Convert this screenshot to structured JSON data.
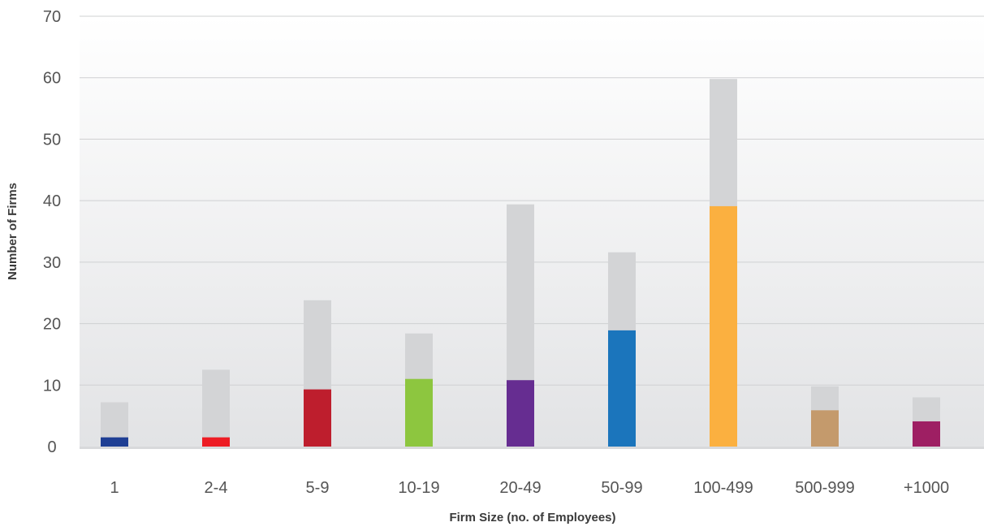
{
  "chart_data": {
    "type": "bar",
    "title": "",
    "xlabel": "Firm Size (no. of Employees)",
    "ylabel": "Number of Firms",
    "ylim": [
      0,
      70
    ],
    "yticks": [
      0,
      10,
      20,
      30,
      40,
      50,
      60,
      70
    ],
    "grid": true,
    "legend": "none",
    "categories": [
      "1",
      "2-4",
      "5-9",
      "10-19",
      "20-49",
      "50-99",
      "100-499",
      "500-999",
      "+1000"
    ],
    "series": [
      {
        "values": [
          7.2,
          12.5,
          23.8,
          18.4,
          39.4,
          31.6,
          59.8,
          9.8,
          8.0
        ],
        "color": "#d3d4d6"
      },
      {
        "values": [
          1.5,
          1.5,
          9.3,
          11.0,
          10.8,
          18.9,
          39.1,
          5.9,
          4.1
        ],
        "colors": [
          "#1f3f94",
          "#ed1c24",
          "#be1e2d",
          "#8dc63f",
          "#662d91",
          "#1b75bc",
          "#fbb040",
          "#c49a6c",
          "#9e1f63"
        ]
      }
    ]
  }
}
